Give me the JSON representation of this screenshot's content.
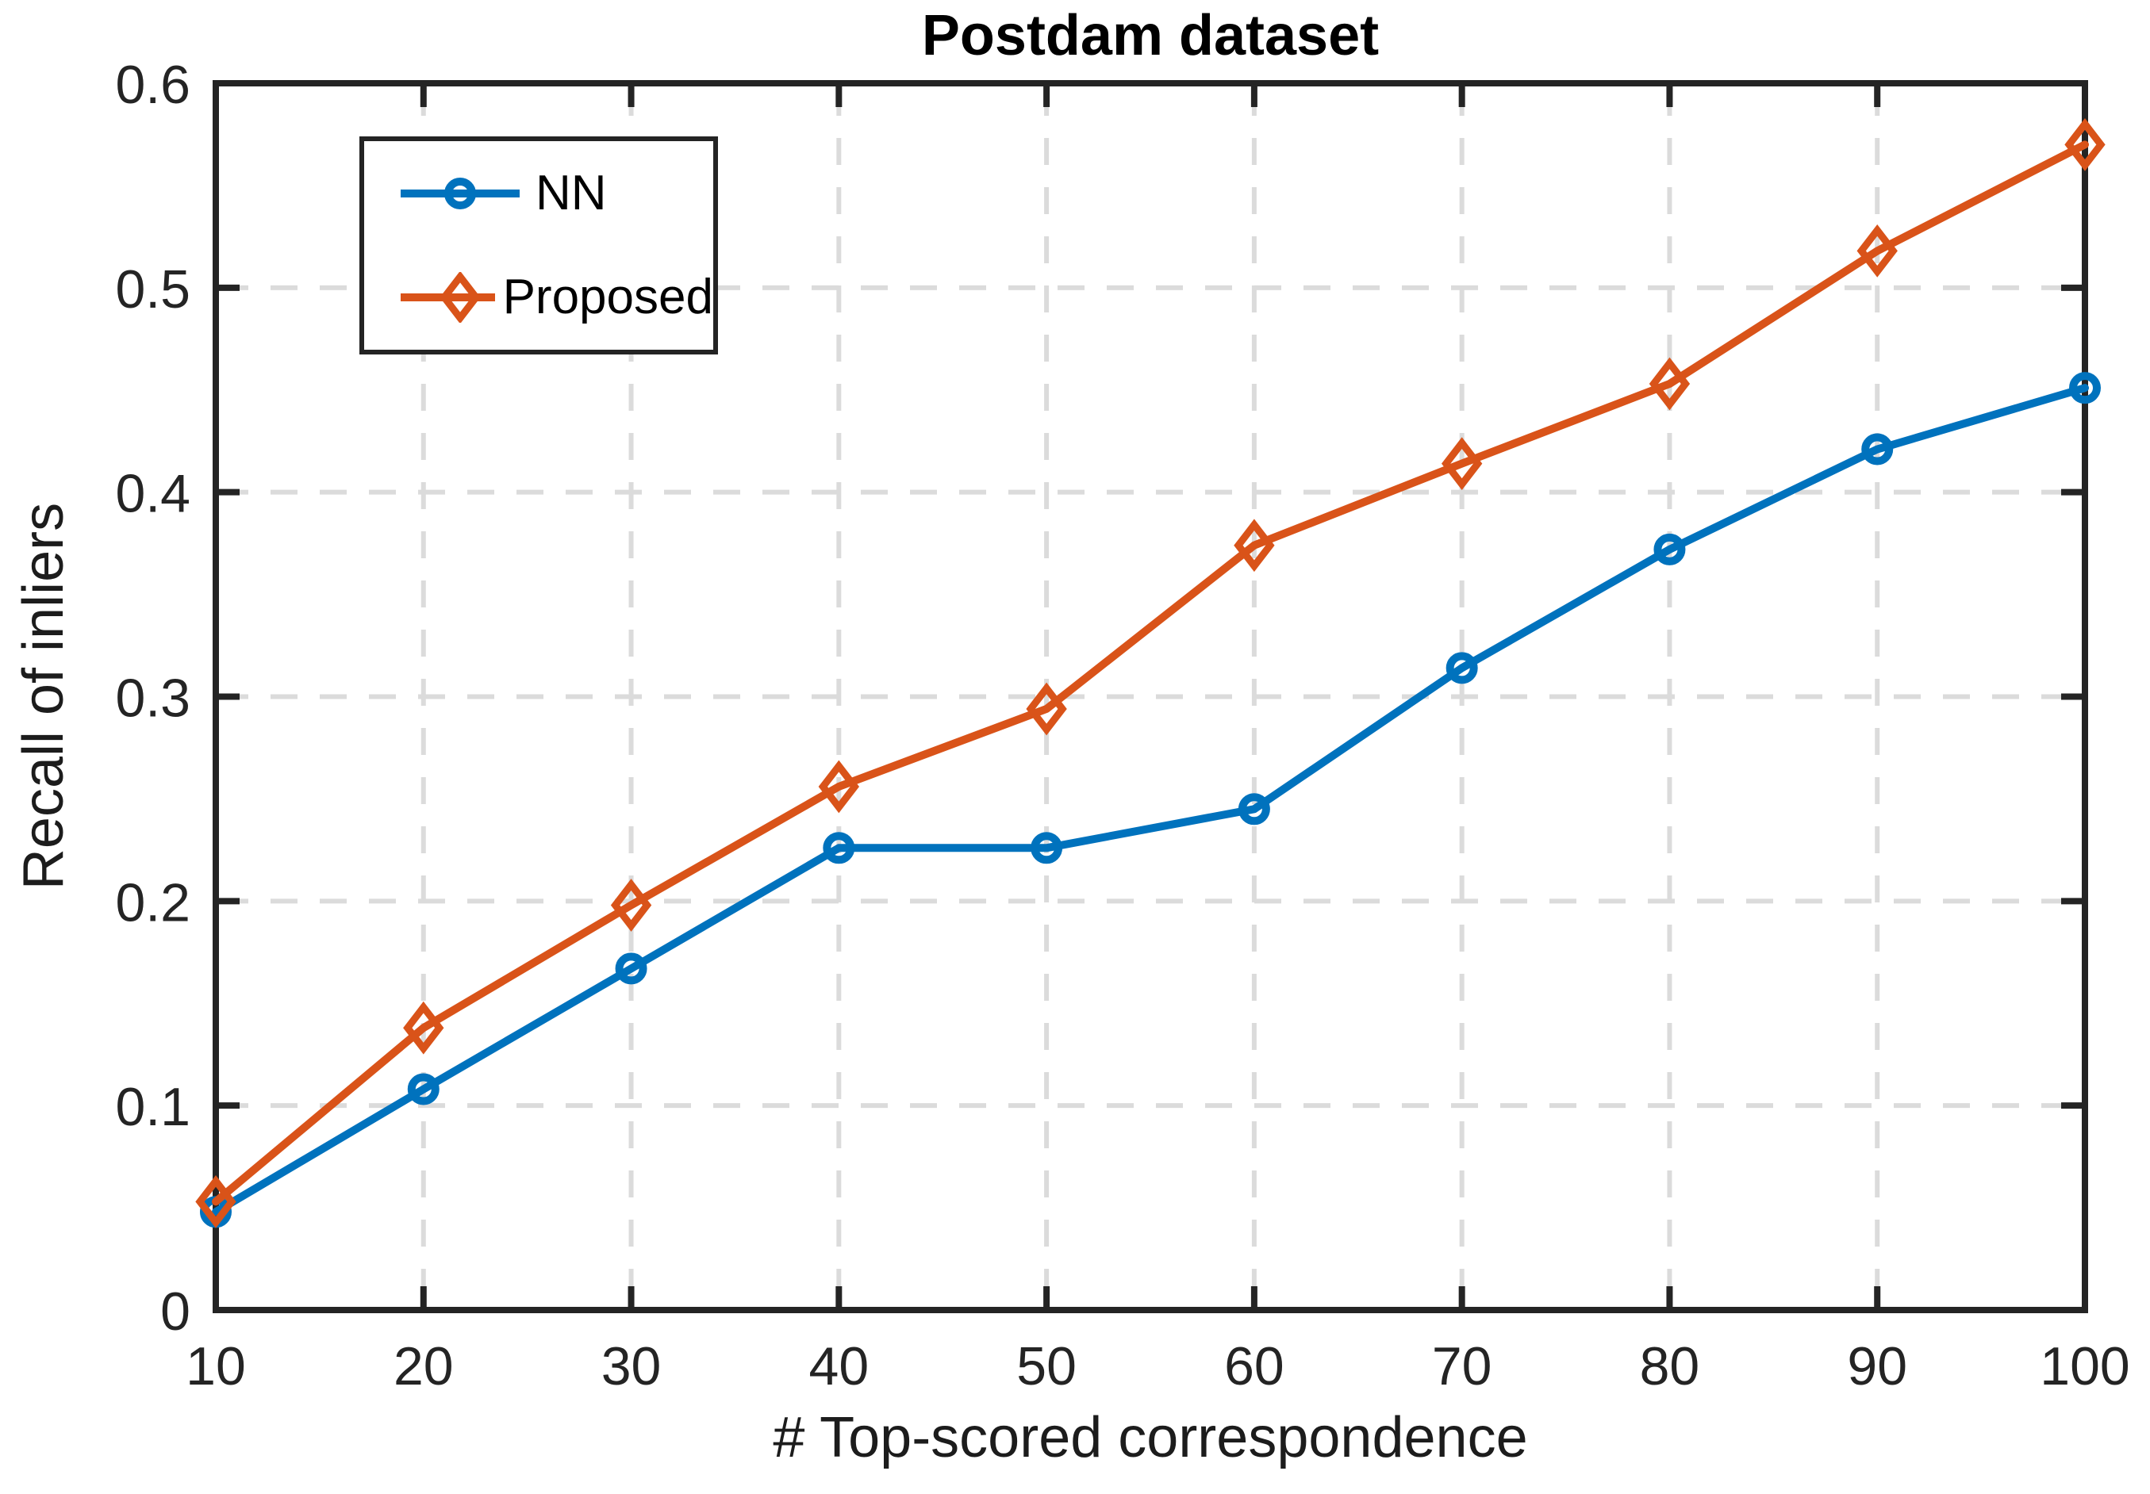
{
  "figure": {
    "title": "Postdam dataset",
    "xlabel": "# Top-scored correspondence",
    "ylabel": "Recall of inliers"
  },
  "colors": {
    "nn": "#0072BD",
    "proposed": "#D95319",
    "axis": "#242424",
    "tick_text": "#242424",
    "grid": "#DBDBDB",
    "background": "#FFFFFF"
  },
  "legend": {
    "position": "top-left",
    "entries": [
      "NN",
      "Proposed"
    ]
  },
  "chart_data": {
    "type": "line",
    "title": "Postdam dataset",
    "xlabel": "# Top-scored correspondence",
    "ylabel": "Recall of inliers",
    "x": [
      10,
      20,
      30,
      40,
      50,
      60,
      70,
      80,
      90,
      100
    ],
    "series": [
      {
        "name": "NN",
        "color": "#0072BD",
        "marker": "circle",
        "values": [
          0.048,
          0.108,
          0.167,
          0.226,
          0.226,
          0.245,
          0.314,
          0.372,
          0.421,
          0.451
        ]
      },
      {
        "name": "Proposed",
        "color": "#D95319",
        "marker": "diamond",
        "values": [
          0.053,
          0.138,
          0.198,
          0.256,
          0.294,
          0.374,
          0.414,
          0.453,
          0.518,
          0.57
        ]
      }
    ],
    "xlim": [
      10,
      100
    ],
    "ylim": [
      0,
      0.6
    ],
    "xticks": [
      10,
      20,
      30,
      40,
      50,
      60,
      70,
      80,
      90,
      100
    ],
    "yticks": [
      0,
      0.1,
      0.2,
      0.3,
      0.4,
      0.5,
      0.6
    ],
    "ytick_labels": [
      "0",
      "0.1",
      "0.2",
      "0.3",
      "0.4",
      "0.5",
      "0.6"
    ],
    "grid": true,
    "grid_style": "dashed",
    "legend_position": "top-left"
  }
}
